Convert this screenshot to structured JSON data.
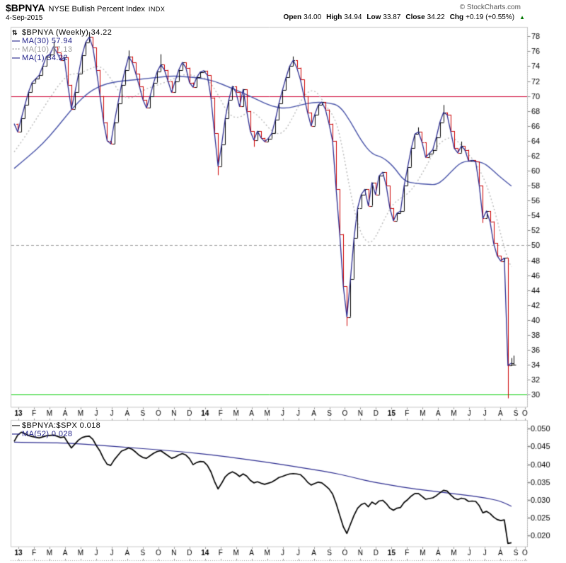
{
  "header": {
    "symbol": "$BPNYA",
    "name": "NYSE Bullish Percent Index",
    "exchange": "INDX",
    "copyright": "© StockCharts.com",
    "date": "4-Sep-2015",
    "quote": {
      "open_label": "Open",
      "open": "34.00",
      "high_label": "High",
      "high": "34.94",
      "low_label": "Low",
      "low": "33.87",
      "close_label": "Close",
      "close": "34.22",
      "chg_label": "Chg",
      "chg": "+0.19 (+0.55%)",
      "direction_icon": "▲"
    }
  },
  "legend_main": [
    {
      "marker": "⇅",
      "label": "$BPNYA (Weekly) 34.22"
    },
    {
      "marker": "—",
      "label": "MA(30) 57.94"
    },
    {
      "marker": "···",
      "label": "MA(10) 47.13"
    },
    {
      "marker": "—",
      "label": "MA(1) 34.22"
    }
  ],
  "legend_lower": [
    {
      "marker": "—",
      "label": "$BPNYA:$SPX 0.018"
    },
    {
      "marker": "—",
      "label": "MA(52) 0.028"
    }
  ],
  "colors": {
    "up_bar": "#000000",
    "down_bar": "#cc0000",
    "ma1": "#2b2b8f",
    "ma30": "#4853a8",
    "ma10": "#b9b9b9",
    "ma52": "#2b2b8f",
    "ratio_line": "#000000",
    "overbought_line": "#cc0033",
    "mid_line": "#999999",
    "oversold_line": "#00cc00",
    "frame": "#c8c8c8",
    "change_up": "#007700"
  },
  "chart_data": [
    {
      "type": "ohlc",
      "title": "$BPNYA (Weekly)",
      "timeframe": "weekly",
      "range": "Jan 2013 - Sep 2015",
      "last_close": 34.22,
      "ylim": [
        28.3,
        79.2
      ],
      "yticks": [
        78,
        76,
        74,
        72,
        70,
        68,
        66,
        64,
        62,
        60,
        58,
        56,
        54,
        52,
        50,
        48,
        46,
        44,
        42,
        40,
        38,
        36,
        34,
        32,
        30
      ],
      "hlines": [
        {
          "value": 70,
          "color": "#cc0033",
          "style": "solid"
        },
        {
          "value": 50,
          "color": "#999999",
          "style": "dashed"
        },
        {
          "value": 30,
          "color": "#00cc00",
          "style": "solid"
        }
      ],
      "x_labels": [
        {
          "t": "13",
          "b": 1
        },
        {
          "t": "F"
        },
        {
          "t": "M"
        },
        {
          "t": "A"
        },
        {
          "t": "M"
        },
        {
          "t": "J"
        },
        {
          "t": "J"
        },
        {
          "t": "A"
        },
        {
          "t": "S"
        },
        {
          "t": "O"
        },
        {
          "t": "N"
        },
        {
          "t": "D"
        },
        {
          "t": "14",
          "b": 1
        },
        {
          "t": "F"
        },
        {
          "t": "M"
        },
        {
          "t": "A"
        },
        {
          "t": "M"
        },
        {
          "t": "J"
        },
        {
          "t": "J"
        },
        {
          "t": "A"
        },
        {
          "t": "S"
        },
        {
          "t": "O"
        },
        {
          "t": "N"
        },
        {
          "t": "D"
        },
        {
          "t": "15",
          "b": 1
        },
        {
          "t": "F"
        },
        {
          "t": "M"
        },
        {
          "t": "A"
        },
        {
          "t": "M"
        },
        {
          "t": "J"
        },
        {
          "t": "J"
        },
        {
          "t": "A"
        },
        {
          "t": "S"
        },
        {
          "t": "O"
        }
      ],
      "closes": [
        66.3,
        65.2,
        67.0,
        68.8,
        70.5,
        71.8,
        72.3,
        72.8,
        74.0,
        75.3,
        75.6,
        76.6,
        75.8,
        74.8,
        75.2,
        71.5,
        68.3,
        70.5,
        73.0,
        75.5,
        77.2,
        77.9,
        76.5,
        73.5,
        70.0,
        66.5,
        64.0,
        63.6,
        66.5,
        69.0,
        71.5,
        73.5,
        75.3,
        74.5,
        73.0,
        71.3,
        69.5,
        68.4,
        70.0,
        71.8,
        73.3,
        74.2,
        73.5,
        72.0,
        70.5,
        72.0,
        73.5,
        74.5,
        73.8,
        71.8,
        71.2,
        72.5,
        73.2,
        73.4,
        72.8,
        69.8,
        65.0,
        60.6,
        63.5,
        67.0,
        69.5,
        71.3,
        70.5,
        68.6,
        70.9,
        68.0,
        65.3,
        64.1,
        65.3,
        64.4,
        63.9,
        64.3,
        65.0,
        66.8,
        69.0,
        70.8,
        72.5,
        74.0,
        74.8,
        73.8,
        72.2,
        70.0,
        67.8,
        66.0,
        67.5,
        68.8,
        69.2,
        68.2,
        66.3,
        64.0,
        57.5,
        51.5,
        44.5,
        40.4,
        45.5,
        51.0,
        55.0,
        56.8,
        57.5,
        55.3,
        58.4,
        56.8,
        59.3,
        59.8,
        58.0,
        55.0,
        53.3,
        54.3,
        54.6,
        58.0,
        60.5,
        63.0,
        64.9,
        65.2,
        63.8,
        61.8,
        62.3,
        62.8,
        64.5,
        66.5,
        67.8,
        67.5,
        65.3,
        63.0,
        62.4,
        63.3,
        62.8,
        61.3,
        61.4,
        61.2,
        58.0,
        53.6,
        54.6,
        53.2,
        50.3,
        48.6,
        47.9,
        48.3,
        33.9,
        34.22
      ],
      "wicks": {
        "11": {
          "h": 77.3
        },
        "21": {
          "h": 78.6
        },
        "32": {
          "h": 76.1
        },
        "41": {
          "h": 75.6
        },
        "57": {
          "l": 59.4
        },
        "67": {
          "l": 63.2
        },
        "78": {
          "h": 75.3
        },
        "93": {
          "l": 39.2
        },
        "113": {
          "h": 65.8
        },
        "120": {
          "h": 68.8
        },
        "125": {
          "h": 63.9
        },
        "131": {
          "l": 53.0
        },
        "138": {
          "l": 29.5
        },
        "139": {
          "h": 34.9
        }
      },
      "overlays": [
        {
          "name": "MA(30)",
          "last": 57.94,
          "style": "solid",
          "color": "#4853a8",
          "points": [
            [
              0,
              60.3
            ],
            [
              4,
              61.9
            ],
            [
              8,
              63.6
            ],
            [
              12,
              65.8
            ],
            [
              16,
              68.2
            ],
            [
              20,
              70.2
            ],
            [
              24,
              71.4
            ],
            [
              28,
              71.9
            ],
            [
              32,
              72.1
            ],
            [
              36,
              72.3
            ],
            [
              40,
              72.5
            ],
            [
              44,
              72.7
            ],
            [
              48,
              72.6
            ],
            [
              52,
              72.4
            ],
            [
              56,
              72.0
            ],
            [
              60,
              71.2
            ],
            [
              64,
              70.4
            ],
            [
              68,
              69.5
            ],
            [
              72,
              68.6
            ],
            [
              76,
              68.3
            ],
            [
              80,
              68.8
            ],
            [
              84,
              69.2
            ],
            [
              88,
              69.1
            ],
            [
              91,
              68.7
            ],
            [
              94,
              66.6
            ],
            [
              97,
              64.0
            ],
            [
              100,
              62.2
            ],
            [
              103,
              61.8
            ],
            [
              106,
              60.6
            ],
            [
              109,
              58.6
            ],
            [
              112,
              58.3
            ],
            [
              115,
              58.2
            ],
            [
              118,
              58.1
            ],
            [
              120,
              58.8
            ],
            [
              122,
              59.8
            ],
            [
              125,
              61.2
            ],
            [
              128,
              61.3
            ],
            [
              131,
              61.1
            ],
            [
              133,
              60.4
            ],
            [
              135,
              59.5
            ],
            [
              137,
              58.7
            ],
            [
              139,
              57.94
            ]
          ]
        },
        {
          "name": "MA(10)",
          "last": 47.13,
          "style": "dotted",
          "color": "#b9b9b9",
          "points": [
            [
              0,
              62.5
            ],
            [
              3,
              64.5
            ],
            [
              6,
              66.8
            ],
            [
              9,
              69.0
            ],
            [
              12,
              71.2
            ],
            [
              15,
              72.9
            ],
            [
              18,
              73.0
            ],
            [
              21,
              73.6
            ],
            [
              24,
              74.2
            ],
            [
              27,
              72.4
            ],
            [
              30,
              70.0
            ],
            [
              33,
              69.6
            ],
            [
              36,
              70.8
            ],
            [
              39,
              71.3
            ],
            [
              42,
              71.8
            ],
            [
              45,
              72.4
            ],
            [
              48,
              73.0
            ],
            [
              51,
              72.6
            ],
            [
              54,
              72.4
            ],
            [
              57,
              70.2
            ],
            [
              60,
              67.4
            ],
            [
              63,
              67.0
            ],
            [
              66,
              68.2
            ],
            [
              69,
              67.0
            ],
            [
              72,
              65.2
            ],
            [
              75,
              64.8
            ],
            [
              78,
              67.2
            ],
            [
              81,
              70.2
            ],
            [
              84,
              71.0
            ],
            [
              87,
              68.8
            ],
            [
              90,
              66.8
            ],
            [
              92,
              62.5
            ],
            [
              94,
              57.0
            ],
            [
              96,
              52.8
            ],
            [
              98,
              50.6
            ],
            [
              100,
              50.3
            ],
            [
              102,
              52.0
            ],
            [
              104,
              54.0
            ],
            [
              106,
              55.6
            ],
            [
              108,
              56.3
            ],
            [
              110,
              56.9
            ],
            [
              112,
              58.0
            ],
            [
              114,
              59.6
            ],
            [
              116,
              61.3
            ],
            [
              118,
              63.2
            ],
            [
              120,
              64.1
            ],
            [
              122,
              64.5
            ],
            [
              124,
              64.0
            ],
            [
              126,
              62.6
            ],
            [
              128,
              61.7
            ],
            [
              130,
              60.2
            ],
            [
              132,
              58.2
            ],
            [
              134,
              55.2
            ],
            [
              136,
              51.5
            ],
            [
              138,
              48.0
            ],
            [
              139,
              47.13
            ]
          ]
        },
        {
          "name": "MA(1)",
          "last": 34.22,
          "style": "solid",
          "color": "#2b2b8f",
          "points": "closes"
        }
      ]
    },
    {
      "type": "line",
      "title": "$BPNYA:$SPX",
      "last": 0.018,
      "ylim": [
        0.0169,
        0.0524
      ],
      "yticks": [
        {
          "v": 0.05,
          "label": "0.050"
        },
        {
          "v": 0.045,
          "label": "0.045"
        },
        {
          "v": 0.04,
          "label": "0.040"
        },
        {
          "v": 0.035,
          "label": "0.035"
        },
        {
          "v": 0.03,
          "label": "0.030"
        },
        {
          "v": 0.025,
          "label": "0.025"
        },
        {
          "v": 0.02,
          "label": "0.020"
        }
      ],
      "values": [
        0.0464,
        0.0482,
        0.049,
        0.0486,
        0.0481,
        0.0478,
        0.0476,
        0.0474,
        0.0477,
        0.048,
        0.0481,
        0.0482,
        0.0479,
        0.0475,
        0.0477,
        0.0461,
        0.0446,
        0.0457,
        0.0468,
        0.0475,
        0.0478,
        0.0479,
        0.047,
        0.0452,
        0.0437,
        0.0416,
        0.04,
        0.0397,
        0.0413,
        0.0425,
        0.0437,
        0.0441,
        0.0446,
        0.0442,
        0.0434,
        0.0425,
        0.0419,
        0.0417,
        0.0424,
        0.0431,
        0.0436,
        0.0438,
        0.0431,
        0.0424,
        0.0417,
        0.042,
        0.0426,
        0.043,
        0.0426,
        0.0416,
        0.0399,
        0.0405,
        0.0408,
        0.0407,
        0.0397,
        0.0379,
        0.0352,
        0.0331,
        0.0347,
        0.0365,
        0.0374,
        0.0379,
        0.0374,
        0.0366,
        0.0373,
        0.0367,
        0.0355,
        0.0348,
        0.0351,
        0.0347,
        0.0344,
        0.0347,
        0.035,
        0.0356,
        0.0363,
        0.0366,
        0.037,
        0.0373,
        0.0374,
        0.0373,
        0.0371,
        0.0362,
        0.035,
        0.0342,
        0.0346,
        0.035,
        0.0348,
        0.034,
        0.0331,
        0.0317,
        0.029,
        0.0257,
        0.0225,
        0.0206,
        0.0232,
        0.0257,
        0.0277,
        0.0287,
        0.0291,
        0.0281,
        0.0294,
        0.0288,
        0.0297,
        0.0299,
        0.029,
        0.0277,
        0.0271,
        0.0277,
        0.0279,
        0.0293,
        0.0301,
        0.0311,
        0.0318,
        0.0318,
        0.031,
        0.0302,
        0.0304,
        0.0306,
        0.0312,
        0.032,
        0.0327,
        0.0325,
        0.0314,
        0.0305,
        0.0301,
        0.0305,
        0.0303,
        0.0296,
        0.0297,
        0.0296,
        0.0284,
        0.0264,
        0.0268,
        0.0262,
        0.0252,
        0.0245,
        0.0242,
        0.0244,
        0.0178,
        0.018
      ],
      "overlays": [
        {
          "name": "MA(52)",
          "last": 0.028,
          "style": "solid",
          "color": "#2b2b8f",
          "points": [
            [
              0,
              0.0462
            ],
            [
              8,
              0.0461
            ],
            [
              16,
              0.0459
            ],
            [
              24,
              0.0453
            ],
            [
              32,
              0.0447
            ],
            [
              40,
              0.0441
            ],
            [
              48,
              0.0434
            ],
            [
              56,
              0.0426
            ],
            [
              64,
              0.0415
            ],
            [
              72,
              0.0404
            ],
            [
              80,
              0.0391
            ],
            [
              88,
              0.0378
            ],
            [
              92,
              0.037
            ],
            [
              96,
              0.036
            ],
            [
              100,
              0.0351
            ],
            [
              104,
              0.0344
            ],
            [
              108,
              0.0337
            ],
            [
              112,
              0.0331
            ],
            [
              116,
              0.0326
            ],
            [
              120,
              0.0321
            ],
            [
              124,
              0.0316
            ],
            [
              128,
              0.0311
            ],
            [
              132,
              0.0305
            ],
            [
              135,
              0.0299
            ],
            [
              137,
              0.0292
            ],
            [
              139,
              0.0282
            ]
          ]
        }
      ]
    }
  ]
}
